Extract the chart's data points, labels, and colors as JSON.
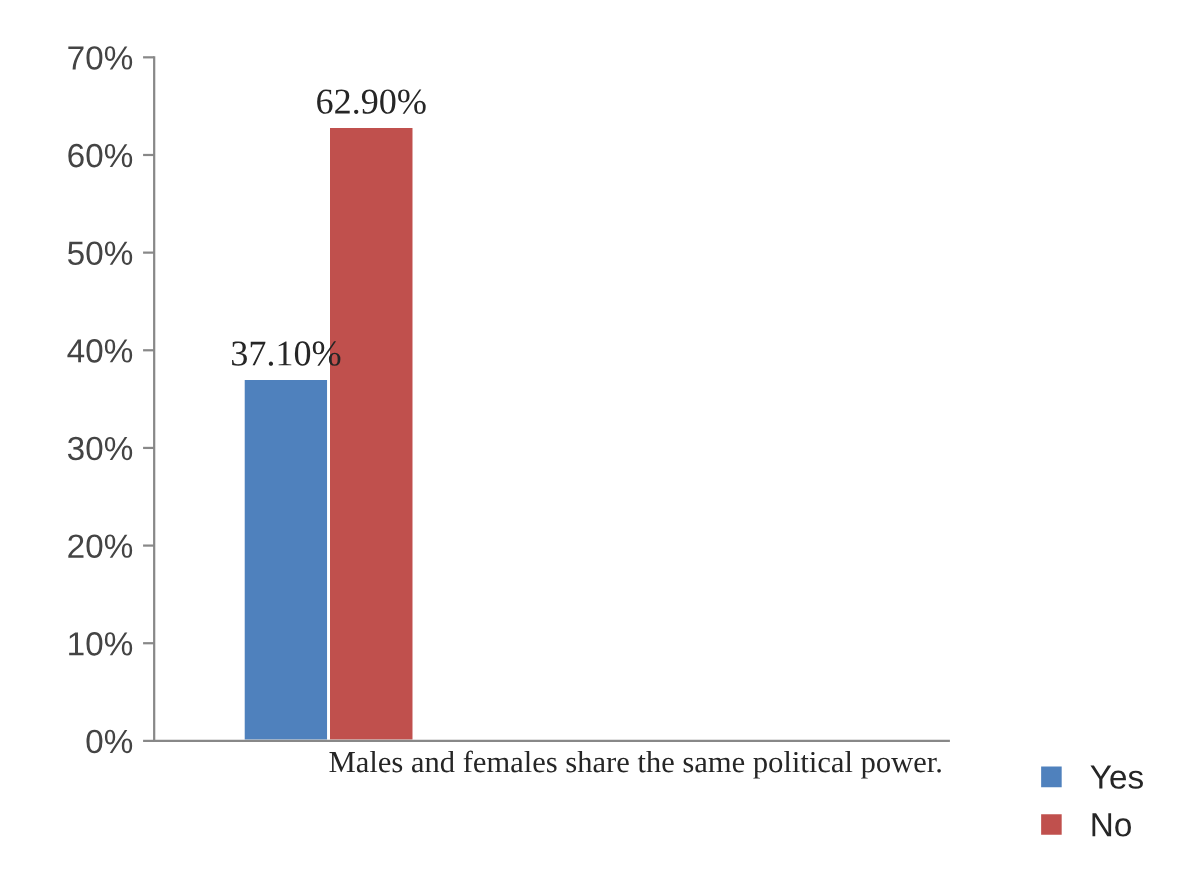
{
  "chart_data": {
    "type": "bar",
    "categories": [
      "Males and females share the same political power."
    ],
    "series": [
      {
        "name": "Yes",
        "color": "#4f81bd",
        "values": [
          37.1
        ],
        "value_labels": [
          "37.10%"
        ]
      },
      {
        "name": "No",
        "color": "#c0504d",
        "values": [
          62.9
        ],
        "value_labels": [
          "62.90%"
        ]
      }
    ],
    "ylim": [
      0,
      70
    ],
    "yticks": [
      {
        "value": 0,
        "label": "0%"
      },
      {
        "value": 10,
        "label": "10%"
      },
      {
        "value": 20,
        "label": "20%"
      },
      {
        "value": 30,
        "label": "30%"
      },
      {
        "value": 40,
        "label": "40%"
      },
      {
        "value": 50,
        "label": "50%"
      },
      {
        "value": 60,
        "label": "60%"
      },
      {
        "value": 70,
        "label": "70%"
      }
    ],
    "grid": false,
    "legend": "bottom right"
  }
}
